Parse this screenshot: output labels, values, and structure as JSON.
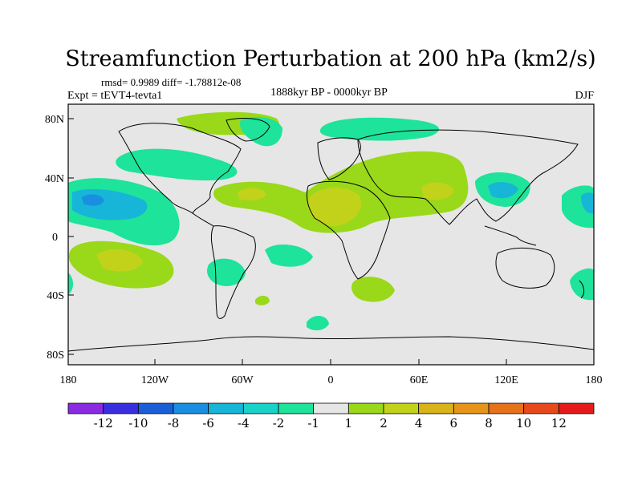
{
  "figure": {
    "title": "Streamfunction Perturbation at 200 hPa (km2/s)",
    "stats_line": "rmsd= 0.9989 diff= -1.78812e-08",
    "experiment": "Expt = tEVT4-tevta1",
    "period": "1888kyr BP - 0000kyr BP",
    "season": "DJF"
  },
  "axes": {
    "y_ticks": [
      "80N",
      "40N",
      "0",
      "40S",
      "80S"
    ],
    "x_ticks": [
      "180",
      "120W",
      "60W",
      "0",
      "60E",
      "120E",
      "180"
    ]
  },
  "colorbar": {
    "colors": [
      "#8a2be2",
      "#3a2fe0",
      "#1a5fd8",
      "#1a8ee0",
      "#17b5d8",
      "#1ad2c8",
      "#1ee39a",
      "#e6e6e6",
      "#9ad81a",
      "#c2d21a",
      "#d8b41a",
      "#e6951a",
      "#e6721a",
      "#e64a1a",
      "#e61a1a"
    ],
    "labels": [
      "-12",
      "-10",
      "-8",
      "-6",
      "-4",
      "-2",
      "-1",
      "1",
      "2",
      "4",
      "6",
      "8",
      "10",
      "12"
    ]
  }
}
